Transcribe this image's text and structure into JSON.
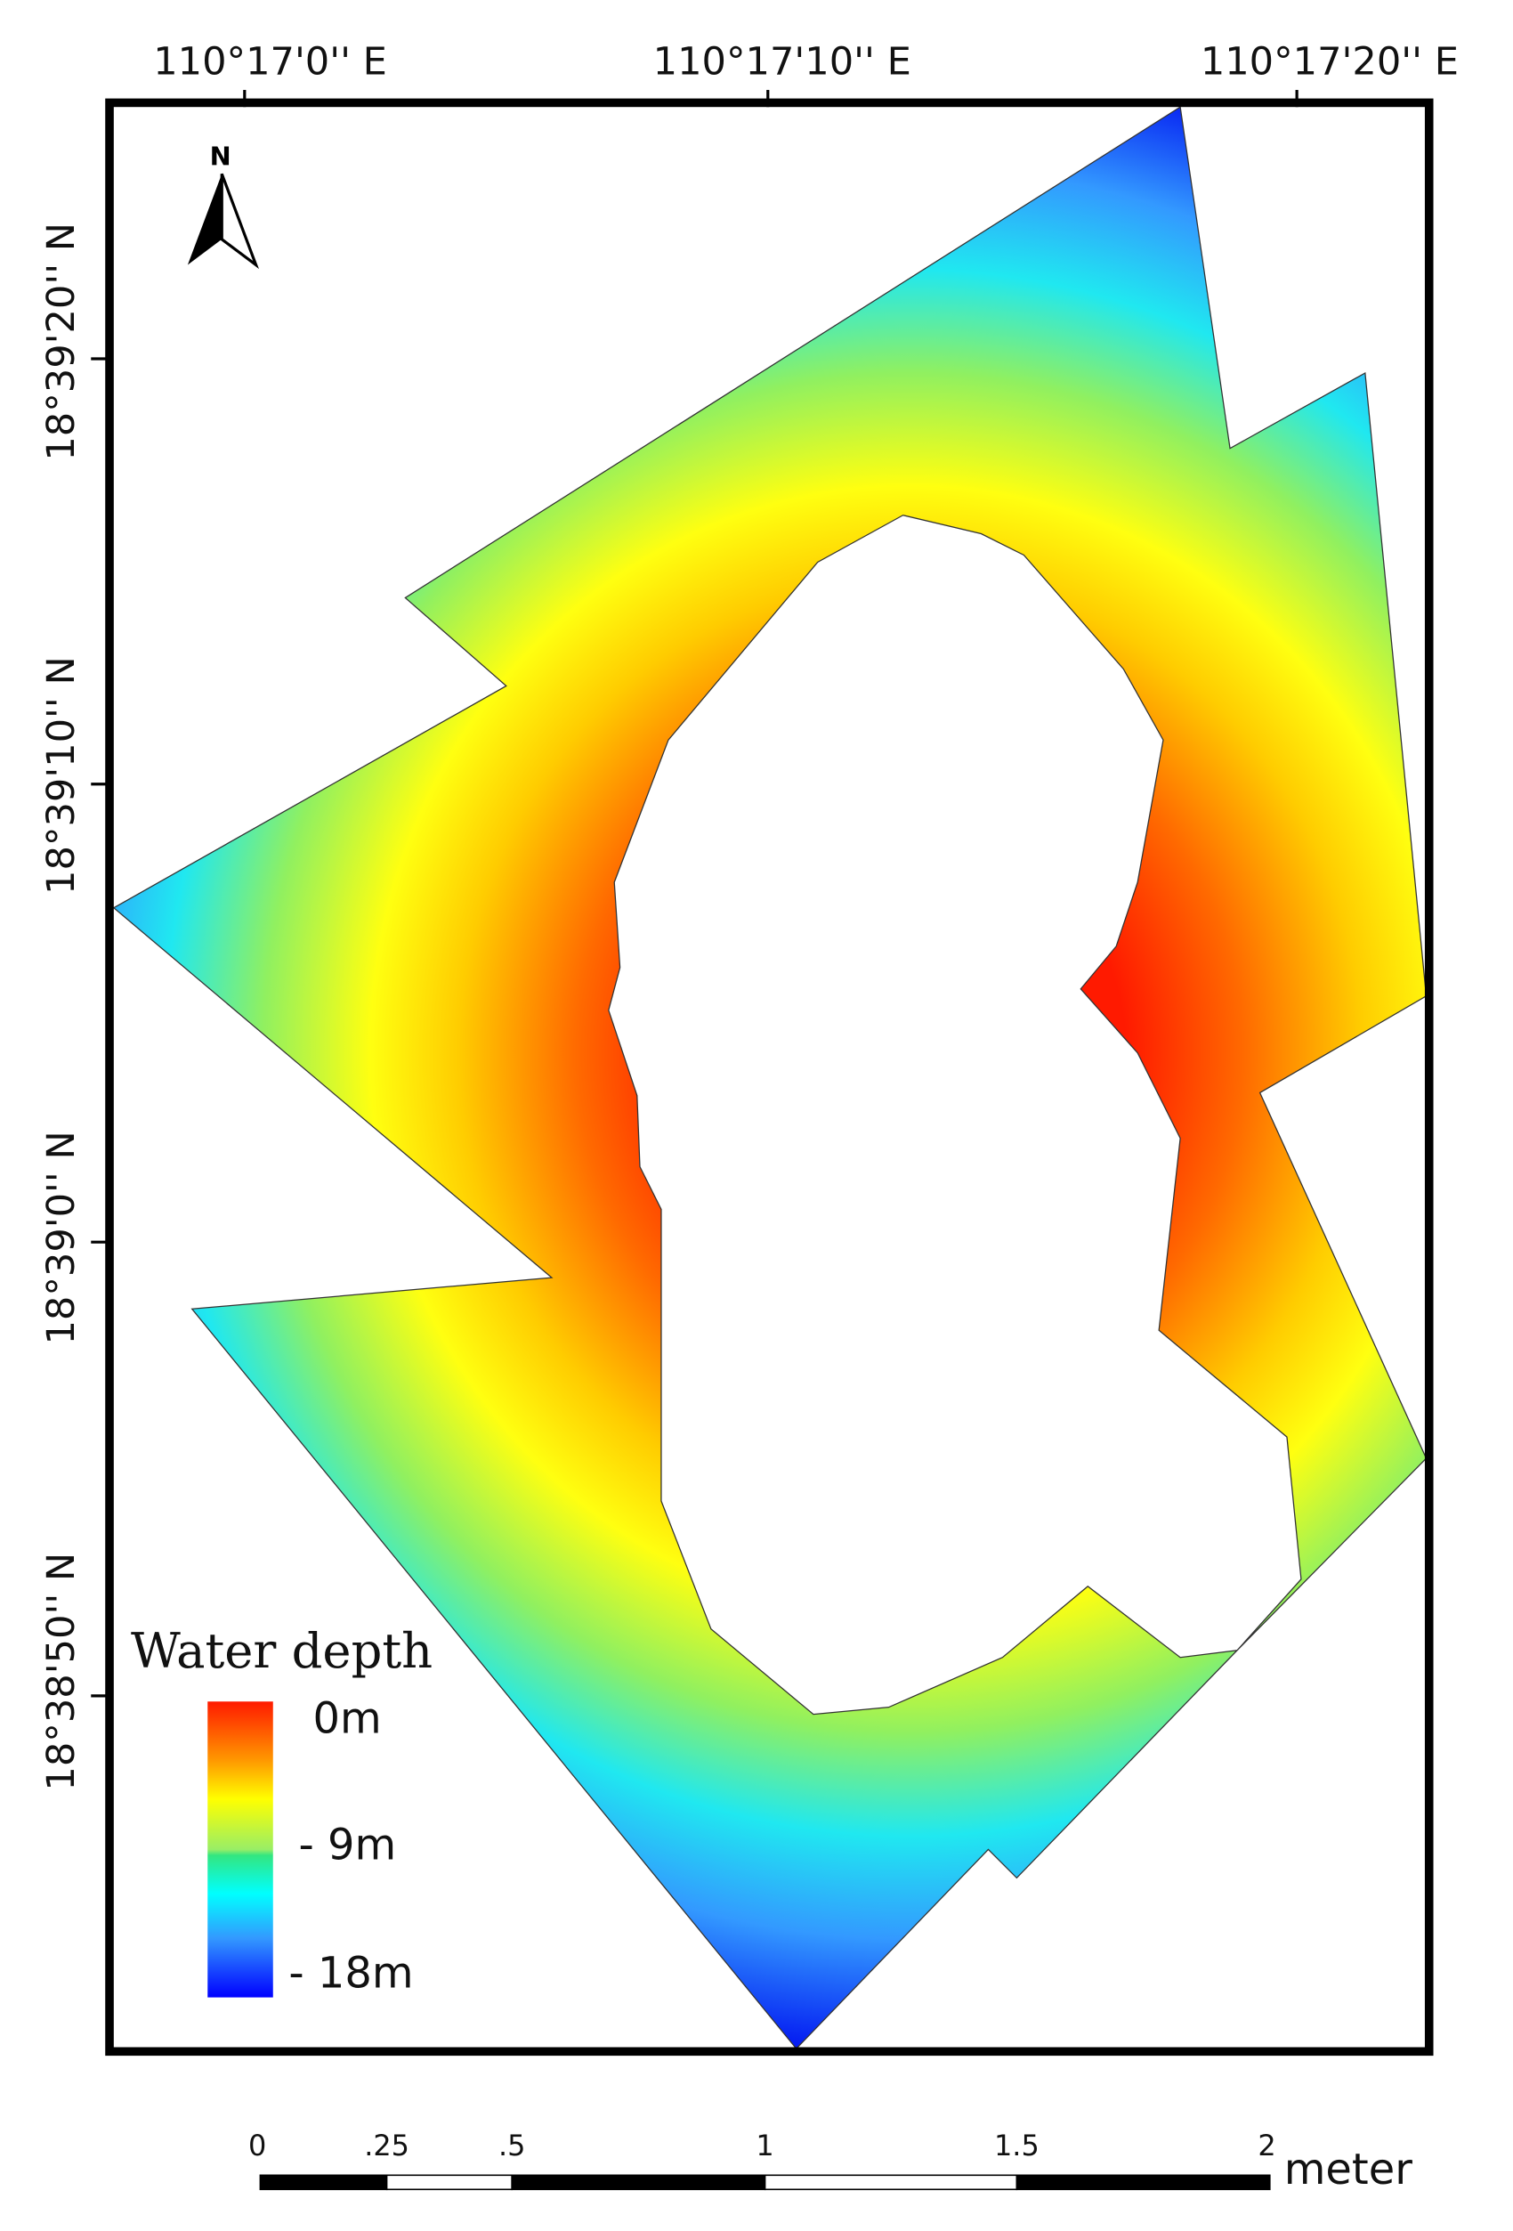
{
  "map": {
    "top_ticks": [
      "110°17'0'' E",
      "110°17'10'' E",
      "110°17'20'' E"
    ],
    "left_ticks": [
      "18°39'20'' N",
      "18°39'10'' N",
      "18°39'0'' N",
      "18°38'50'' N"
    ],
    "north_arrow_label": "N",
    "legend": {
      "title": "Water depth",
      "labels": [
        "0m",
        "- 9m",
        "- 18m"
      ],
      "colors": [
        "#ff1a00",
        "#ff9900",
        "#ffff00",
        "#33e680",
        "#00ffff",
        "#3399ff",
        "#0000ff"
      ]
    },
    "scale_bar": {
      "labels": [
        "0",
        ".25",
        ".5",
        "1",
        "1.5",
        "2"
      ],
      "unit": "meter"
    }
  }
}
